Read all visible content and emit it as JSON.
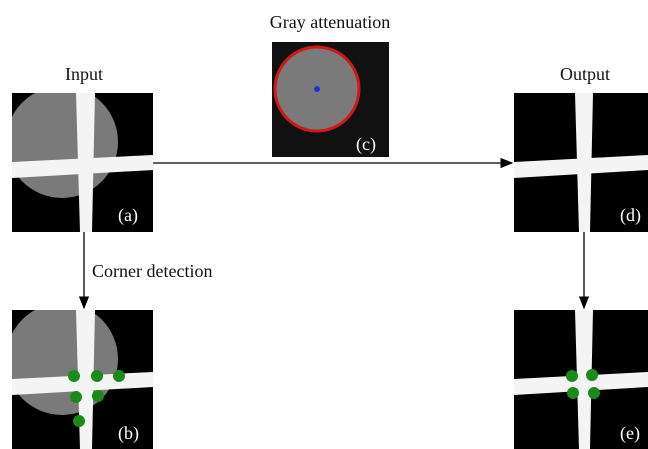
{
  "nodes": [
    {
      "heading": "Input",
      "tag": "(a)"
    },
    {
      "tag": "(b)"
    },
    {
      "heading": "Gray attenuation",
      "tag": "(c)"
    },
    {
      "heading": "Output",
      "tag": "(d)"
    },
    {
      "tag": "(e)"
    }
  ],
  "edges": [
    {
      "label": "Corner detection"
    }
  ]
}
